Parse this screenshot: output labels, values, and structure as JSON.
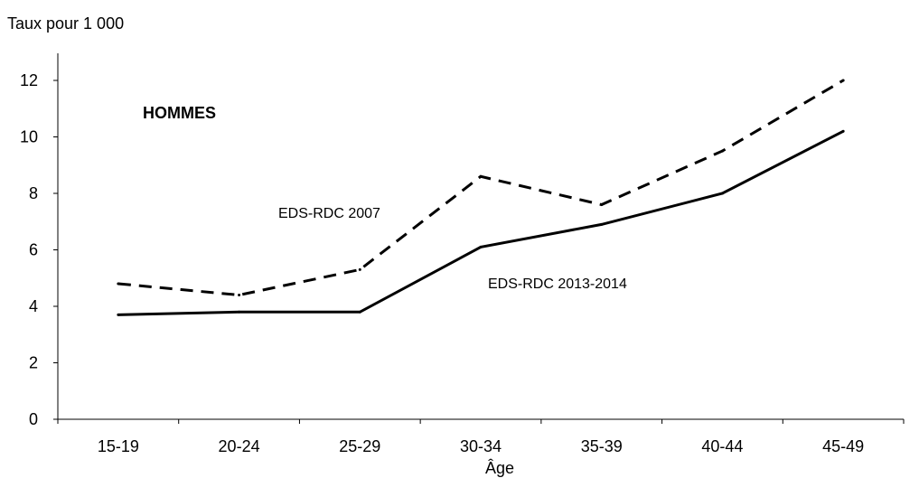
{
  "chart_data": {
    "type": "line",
    "title": "HOMMES",
    "ylabel": "Taux pour 1 000",
    "xlabel": "Âge",
    "categories": [
      "15-19",
      "20-24",
      "25-29",
      "30-34",
      "35-39",
      "40-44",
      "45-49"
    ],
    "ylim": [
      0,
      12
    ],
    "yticks": [
      0,
      2,
      4,
      6,
      8,
      10,
      12
    ],
    "grid": false,
    "series": [
      {
        "name": "EDS-RDC 2007",
        "style": "dashed",
        "color": "#000000",
        "values": [
          4.8,
          4.4,
          5.3,
          8.6,
          7.6,
          9.5,
          12.0
        ]
      },
      {
        "name": "EDS-RDC 2013-2014",
        "style": "solid",
        "color": "#000000",
        "values": [
          3.7,
          3.8,
          3.8,
          6.1,
          6.9,
          8.0,
          10.2
        ]
      }
    ]
  }
}
